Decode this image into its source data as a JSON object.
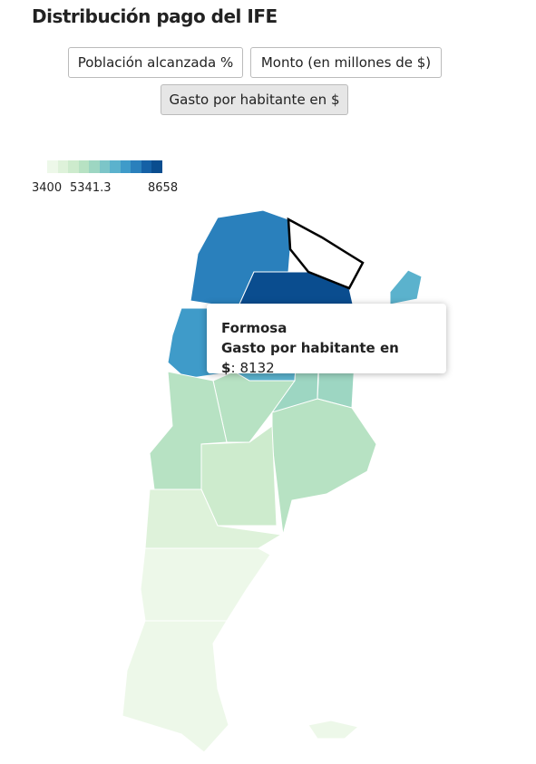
{
  "title": "Distribución pago del IFE",
  "buttons": [
    "Población alcanzada %",
    "Monto (en millones de $)",
    "Gasto por habitante en $"
  ],
  "active_button": 2,
  "legend": {
    "min": 3400,
    "mid": 5341.3,
    "max": 8658,
    "colors": [
      "#edf8e9",
      "#def2da",
      "#cdebcd",
      "#b7e2c3",
      "#9dd6c2",
      "#7cc5c8",
      "#5bb2cd",
      "#3f9bc9",
      "#2a80bc",
      "#1561a6",
      "#0a4d8f"
    ]
  },
  "tooltip": {
    "region": "Formosa",
    "label": "Gasto por habitante en $",
    "separator": ":",
    "value": 8132
  }
}
